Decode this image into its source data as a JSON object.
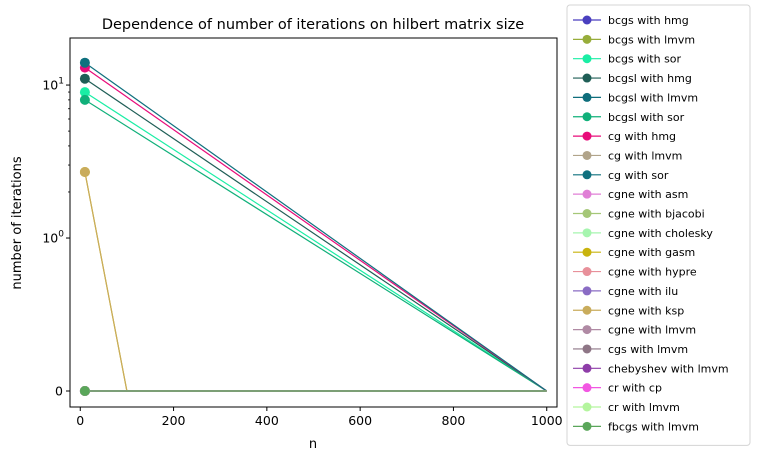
{
  "chart_data": {
    "type": "line",
    "title": "Dependence of number of iterations on hilbert matrix size",
    "xlabel": "n",
    "ylabel": "number of iterations",
    "x_ticks": [
      "0",
      "200",
      "400",
      "600",
      "800",
      "1000"
    ],
    "x_tick_values": [
      0,
      200,
      400,
      600,
      800,
      1000
    ],
    "y_scale": "symlog",
    "y_ticks": [
      {
        "value": 0,
        "base": "0",
        "exp": ""
      },
      {
        "value": 1,
        "base": "10",
        "exp": "0"
      },
      {
        "value": 10,
        "base": "10",
        "exp": "1"
      }
    ],
    "xlim": [
      -22,
      1022
    ],
    "ylim": [
      0,
      18
    ],
    "grid": false,
    "legend_position": "outside-right",
    "series": [
      {
        "name": "bcgs with hmg",
        "color": "#4a3fbf",
        "x": [
          10,
          1000
        ],
        "y": [
          0,
          0
        ]
      },
      {
        "name": "bcgs with lmvm",
        "color": "#97ad3a",
        "x": [
          10,
          1000
        ],
        "y": [
          0,
          0
        ]
      },
      {
        "name": "bcgs with sor",
        "color": "#1aeea5",
        "x": [
          10,
          1000
        ],
        "y": [
          9,
          0
        ]
      },
      {
        "name": "bcgsl with hmg",
        "color": "#1f5e56",
        "x": [
          10,
          1000
        ],
        "y": [
          11,
          0
        ]
      },
      {
        "name": "bcgsl with lmvm",
        "color": "#0f6e7c",
        "x": [
          10,
          1000
        ],
        "y": [
          0,
          0
        ]
      },
      {
        "name": "bcgsl with sor",
        "color": "#10b07a",
        "x": [
          10,
          1000
        ],
        "y": [
          8,
          0
        ]
      },
      {
        "name": "cg with hmg",
        "color": "#e80c7a",
        "x": [
          10,
          1000
        ],
        "y": [
          13,
          0
        ]
      },
      {
        "name": "cg with lmvm",
        "color": "#b1a48a",
        "x": [
          10,
          1000
        ],
        "y": [
          0,
          0
        ]
      },
      {
        "name": "cg with sor",
        "color": "#0f707e",
        "x": [
          10,
          1000
        ],
        "y": [
          14,
          0
        ]
      },
      {
        "name": "cgne with asm",
        "color": "#e07fd6",
        "x": [
          10,
          100,
          1000
        ],
        "y": [
          0,
          0,
          0
        ]
      },
      {
        "name": "cgne with bjacobi",
        "color": "#a5c777",
        "x": [
          10,
          100,
          1000
        ],
        "y": [
          0,
          0,
          0
        ]
      },
      {
        "name": "cgne with cholesky",
        "color": "#a6f5af",
        "x": [
          10,
          100,
          1000
        ],
        "y": [
          0,
          0,
          0
        ]
      },
      {
        "name": "cgne with gasm",
        "color": "#c9b30d",
        "x": [
          10,
          100,
          1000
        ],
        "y": [
          2.7,
          0,
          0
        ]
      },
      {
        "name": "cgne with hypre",
        "color": "#e8909a",
        "x": [
          10,
          100,
          1000
        ],
        "y": [
          0,
          0,
          0
        ]
      },
      {
        "name": "cgne with ilu",
        "color": "#8a6cc4",
        "x": [
          10,
          100,
          1000
        ],
        "y": [
          0,
          0,
          0
        ]
      },
      {
        "name": "cgne with ksp",
        "color": "#c9ac5c",
        "x": [
          10,
          100,
          1000
        ],
        "y": [
          2.7,
          0,
          0
        ]
      },
      {
        "name": "cgne with lmvm",
        "color": "#b08aa4",
        "x": [
          10,
          100,
          1000
        ],
        "y": [
          0,
          0,
          0
        ]
      },
      {
        "name": "cgs with lmvm",
        "color": "#8e7686",
        "x": [
          10,
          1000
        ],
        "y": [
          0,
          0
        ]
      },
      {
        "name": "chebyshev with lmvm",
        "color": "#8e3da8",
        "x": [
          10,
          1000
        ],
        "y": [
          0,
          0
        ]
      },
      {
        "name": "cr with cp",
        "color": "#f257e2",
        "x": [
          10,
          1000
        ],
        "y": [
          0,
          0
        ]
      },
      {
        "name": "cr with lmvm",
        "color": "#b4f59e",
        "x": [
          10,
          1000
        ],
        "y": [
          0,
          0
        ]
      },
      {
        "name": "fbcgs with lmvm",
        "color": "#5aa65a",
        "x": [
          10,
          1000
        ],
        "y": [
          0,
          0
        ]
      }
    ]
  }
}
